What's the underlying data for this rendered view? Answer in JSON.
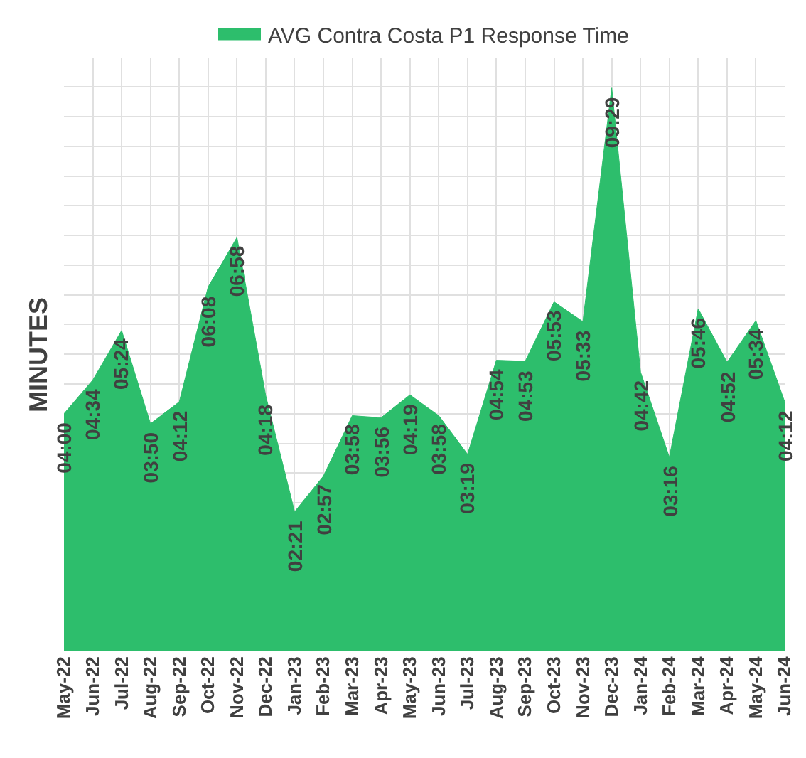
{
  "chart_data": {
    "type": "area",
    "ylabel": "MINUTES",
    "categories": [
      "May-22",
      "Jun-22",
      "Jul-22",
      "Aug-22",
      "Sep-22",
      "Oct-22",
      "Nov-22",
      "Dec-22",
      "Jan-23",
      "Feb-23",
      "Mar-23",
      "Apr-23",
      "May-23",
      "Jun-23",
      "Jul-23",
      "Aug-23",
      "Sep-23",
      "Oct-23",
      "Nov-23",
      "Dec-23",
      "Jan-24",
      "Feb-24",
      "Mar-24",
      "Apr-24",
      "May-24",
      "Jun-24"
    ],
    "series": [
      {
        "name": "AVG Contra Costa P1 Response Time",
        "color": "#2dbe6c",
        "values": [
          4.0,
          4.567,
          5.4,
          3.833,
          4.2,
          6.133,
          6.967,
          4.3,
          2.35,
          2.95,
          3.967,
          3.933,
          4.317,
          3.967,
          3.317,
          4.9,
          4.883,
          5.883,
          5.55,
          9.483,
          4.7,
          3.267,
          5.767,
          4.867,
          5.567,
          4.2
        ],
        "value_labels": [
          "04:00",
          "04:34",
          "05:24",
          "03:50",
          "04:12",
          "06:08",
          "06:58",
          "04:18",
          "02:21",
          "02:57",
          "03:58",
          "03:56",
          "04:19",
          "03:58",
          "03:19",
          "04:54",
          "04:53",
          "05:53",
          "05:33",
          "09:29",
          "04:42",
          "03:16",
          "05:46",
          "04:52",
          "05:34",
          "04:12"
        ]
      }
    ],
    "grid": true,
    "legend": "top",
    "tick_labels": "x"
  }
}
